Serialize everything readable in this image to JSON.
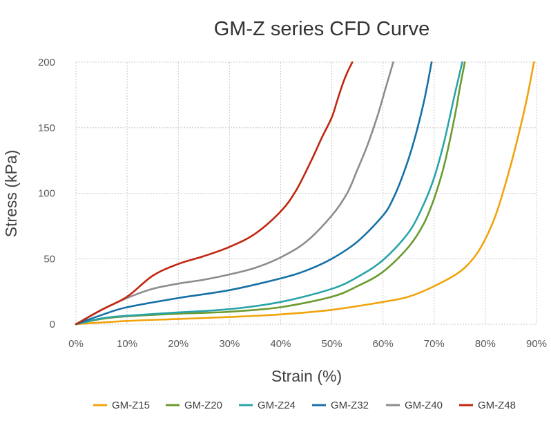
{
  "chart_data": {
    "type": "line",
    "title": "GM-Z series CFD Curve",
    "xlabel": "Strain (%)",
    "ylabel": "Stress (kPa)",
    "xlim": [
      0,
      90
    ],
    "ylim": [
      0,
      200
    ],
    "xticks": [
      0,
      10,
      20,
      30,
      40,
      50,
      60,
      70,
      80,
      90
    ],
    "xtick_labels": [
      "0%",
      "10%",
      "20%",
      "30%",
      "40%",
      "50%",
      "60%",
      "70%",
      "80%",
      "90%"
    ],
    "yticks": [
      0,
      50,
      100,
      150,
      200
    ],
    "ytick_labels": [
      "0",
      "50",
      "100",
      "150",
      "200"
    ],
    "grid": true,
    "legend_position": "bottom",
    "series": [
      {
        "name": "GM-Z15",
        "color": "#f0a30a",
        "x": [
          0,
          10,
          20,
          30,
          40,
          50,
          60,
          65,
          70,
          75,
          78,
          80,
          82,
          84,
          86,
          88,
          89.5
        ],
        "y": [
          0,
          2.5,
          4,
          5.5,
          7.5,
          11,
          17,
          21,
          29,
          40,
          52,
          65,
          83,
          108,
          137,
          170,
          200
        ]
      },
      {
        "name": "GM-Z20",
        "color": "#6b9a2e",
        "x": [
          0,
          5,
          10,
          20,
          30,
          40,
          50,
          55,
          60,
          65,
          68,
          70,
          72,
          74,
          75,
          76
        ],
        "y": [
          0,
          4,
          6,
          8,
          9.5,
          13,
          21,
          29,
          40,
          59,
          77,
          96,
          122,
          158,
          180,
          200
        ]
      },
      {
        "name": "GM-Z24",
        "color": "#2aa4a8",
        "x": [
          0,
          5,
          10,
          20,
          30,
          40,
          50,
          55,
          60,
          65,
          68,
          70,
          72,
          74,
          75.5
        ],
        "y": [
          0,
          4.5,
          6.5,
          9,
          11.5,
          17,
          27,
          36,
          49,
          70,
          92,
          112,
          140,
          175,
          200
        ]
      },
      {
        "name": "GM-Z32",
        "color": "#1670a6",
        "x": [
          0,
          5,
          10,
          20,
          30,
          40,
          45,
          50,
          55,
          60,
          62,
          64,
          66,
          68,
          69.5
        ],
        "y": [
          0,
          7,
          13,
          20,
          26,
          35,
          41,
          50,
          63,
          83,
          96,
          115,
          139,
          170,
          200
        ]
      },
      {
        "name": "GM-Z40",
        "color": "#8c8c8c",
        "x": [
          0,
          5,
          10,
          15,
          20,
          25,
          30,
          35,
          40,
          45,
          50,
          53,
          55,
          57,
          59,
          60.5,
          62
        ],
        "y": [
          0,
          11,
          20,
          27,
          31,
          34,
          38,
          43,
          51,
          63,
          83,
          100,
          118,
          137,
          160,
          180,
          200
        ]
      },
      {
        "name": "GM-Z48",
        "color": "#c0260f",
        "x": [
          0,
          5,
          10,
          15,
          20,
          25,
          30,
          35,
          40,
          43,
          46,
          48,
          50,
          51,
          52,
          53,
          54
        ],
        "y": [
          0,
          11,
          21,
          37,
          46,
          52,
          59,
          69,
          86,
          102,
          125,
          142,
          158,
          170,
          182,
          192,
          200
        ]
      }
    ]
  }
}
